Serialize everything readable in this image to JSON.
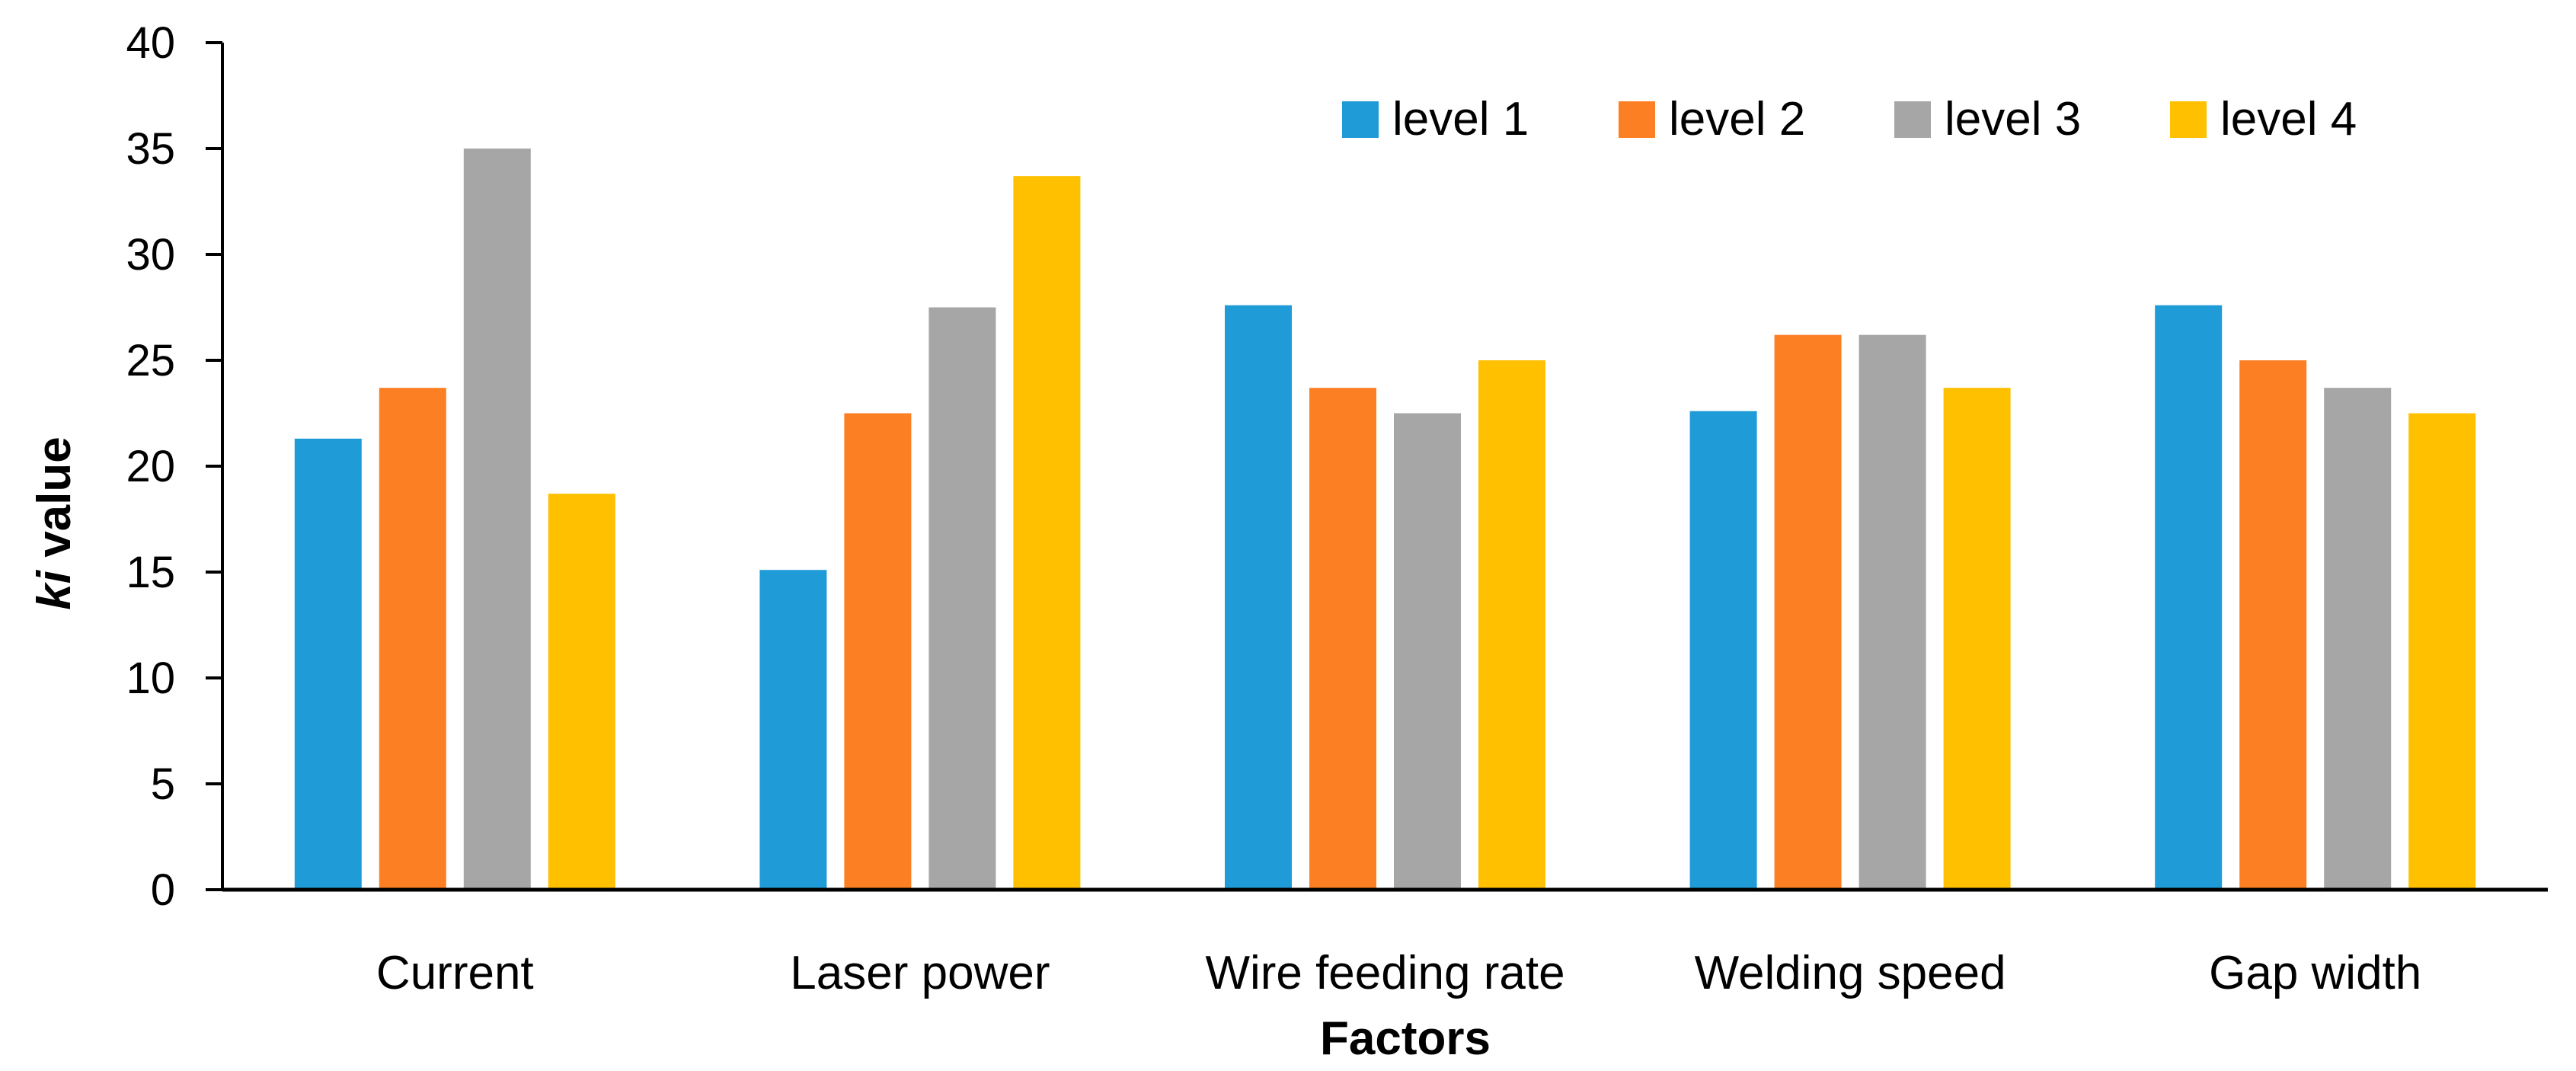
{
  "chart_data": {
    "type": "bar",
    "title": "",
    "xlabel": "Factors",
    "ylabel_italic": "ki",
    "ylabel_rest": " value",
    "ylim": [
      0,
      40
    ],
    "yticks": [
      "0",
      "5",
      "10",
      "15",
      "20",
      "25",
      "30",
      "35",
      "40"
    ],
    "categories": [
      "Current",
      "Laser power",
      "Wire feeding rate",
      "Welding speed",
      "Gap width"
    ],
    "series": [
      {
        "name": "level 1",
        "color": "#1F9BD7",
        "values": [
          21.3,
          15.1,
          27.6,
          22.6,
          27.6
        ]
      },
      {
        "name": "level 2",
        "color": "#FD7F23",
        "values": [
          23.7,
          22.5,
          23.7,
          26.2,
          25.0
        ]
      },
      {
        "name": "level 3",
        "color": "#A6A6A6",
        "values": [
          35.0,
          27.5,
          22.5,
          26.2,
          23.7
        ]
      },
      {
        "name": "level 4",
        "color": "#FFC000",
        "values": [
          18.7,
          33.7,
          25.0,
          23.7,
          22.5
        ]
      }
    ],
    "legend_position": "top-right",
    "grid": false
  }
}
